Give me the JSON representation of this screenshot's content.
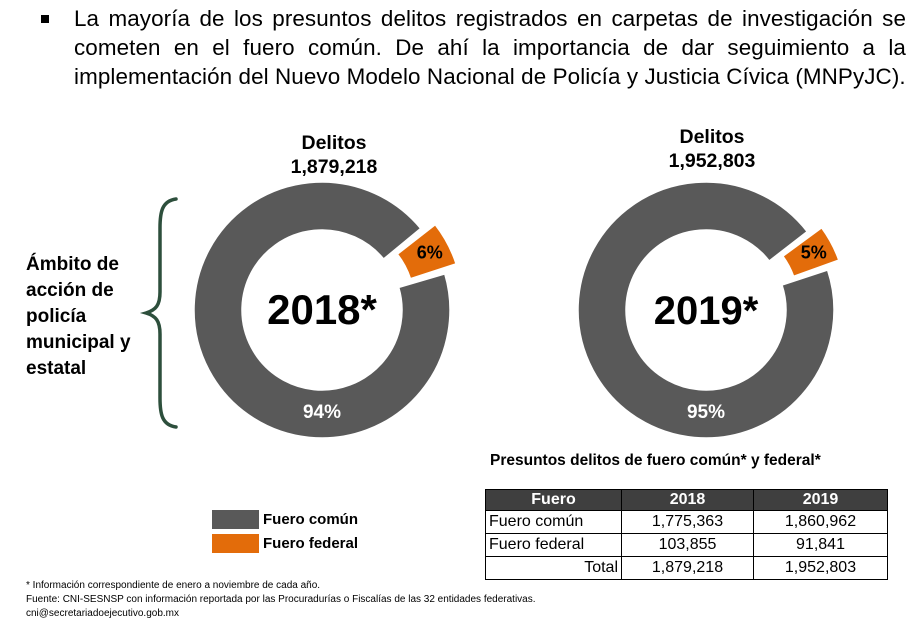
{
  "intro": {
    "bullet": "▪",
    "text": "La mayoría de los presuntos delitos registrados en carpetas de investigación se cometen en el fuero común. De ahí la importancia de dar seguimiento a la implementación del Nuevo Modelo Nacional de Policía y Justicia Cívica (MNPyJC)."
  },
  "side_label": "Ámbito de acción de policía municipal y estatal",
  "colors": {
    "fuero_comun": "#595959",
    "fuero_federal": "#e36c0a",
    "bracket": "#2d4f3c",
    "table_header_bg": "#3f3f3f"
  },
  "chart_data": [
    {
      "type": "pie",
      "donut": true,
      "center_label": "2018*",
      "title_line1": "Delitos",
      "title_line2": "1,879,218",
      "categories": [
        "Fuero común",
        "Fuero federal"
      ],
      "values": [
        94,
        6
      ],
      "value_labels": [
        "94%",
        "6%"
      ],
      "exploded": [
        false,
        true
      ]
    },
    {
      "type": "pie",
      "donut": true,
      "center_label": "2019*",
      "title_line1": "Delitos",
      "title_line2": "1,952,803",
      "categories": [
        "Fuero común",
        "Fuero federal"
      ],
      "values": [
        95,
        5
      ],
      "value_labels": [
        "95%",
        "5%"
      ],
      "exploded": [
        false,
        true
      ]
    }
  ],
  "legend": [
    {
      "label": "Fuero común",
      "color": "#595959"
    },
    {
      "label": "Fuero federal",
      "color": "#e36c0a"
    }
  ],
  "table": {
    "title": "Presuntos delitos de fuero común* y federal*",
    "headers": [
      "Fuero",
      "2018",
      "2019"
    ],
    "rows": [
      [
        "Fuero común",
        "1,775,363",
        "1,860,962"
      ],
      [
        "Fuero federal",
        "103,855",
        "91,841"
      ],
      [
        "Total",
        "1,879,218",
        "1,952,803"
      ]
    ]
  },
  "footnotes": [
    "* Información correspondiente de enero a noviembre de cada año.",
    "Fuente: CNI-SESNSP con información reportada por las Procuradurías o Fiscalías de las 32 entidades federativas.",
    "cni@secretariadoejecutivo.gob.mx"
  ]
}
